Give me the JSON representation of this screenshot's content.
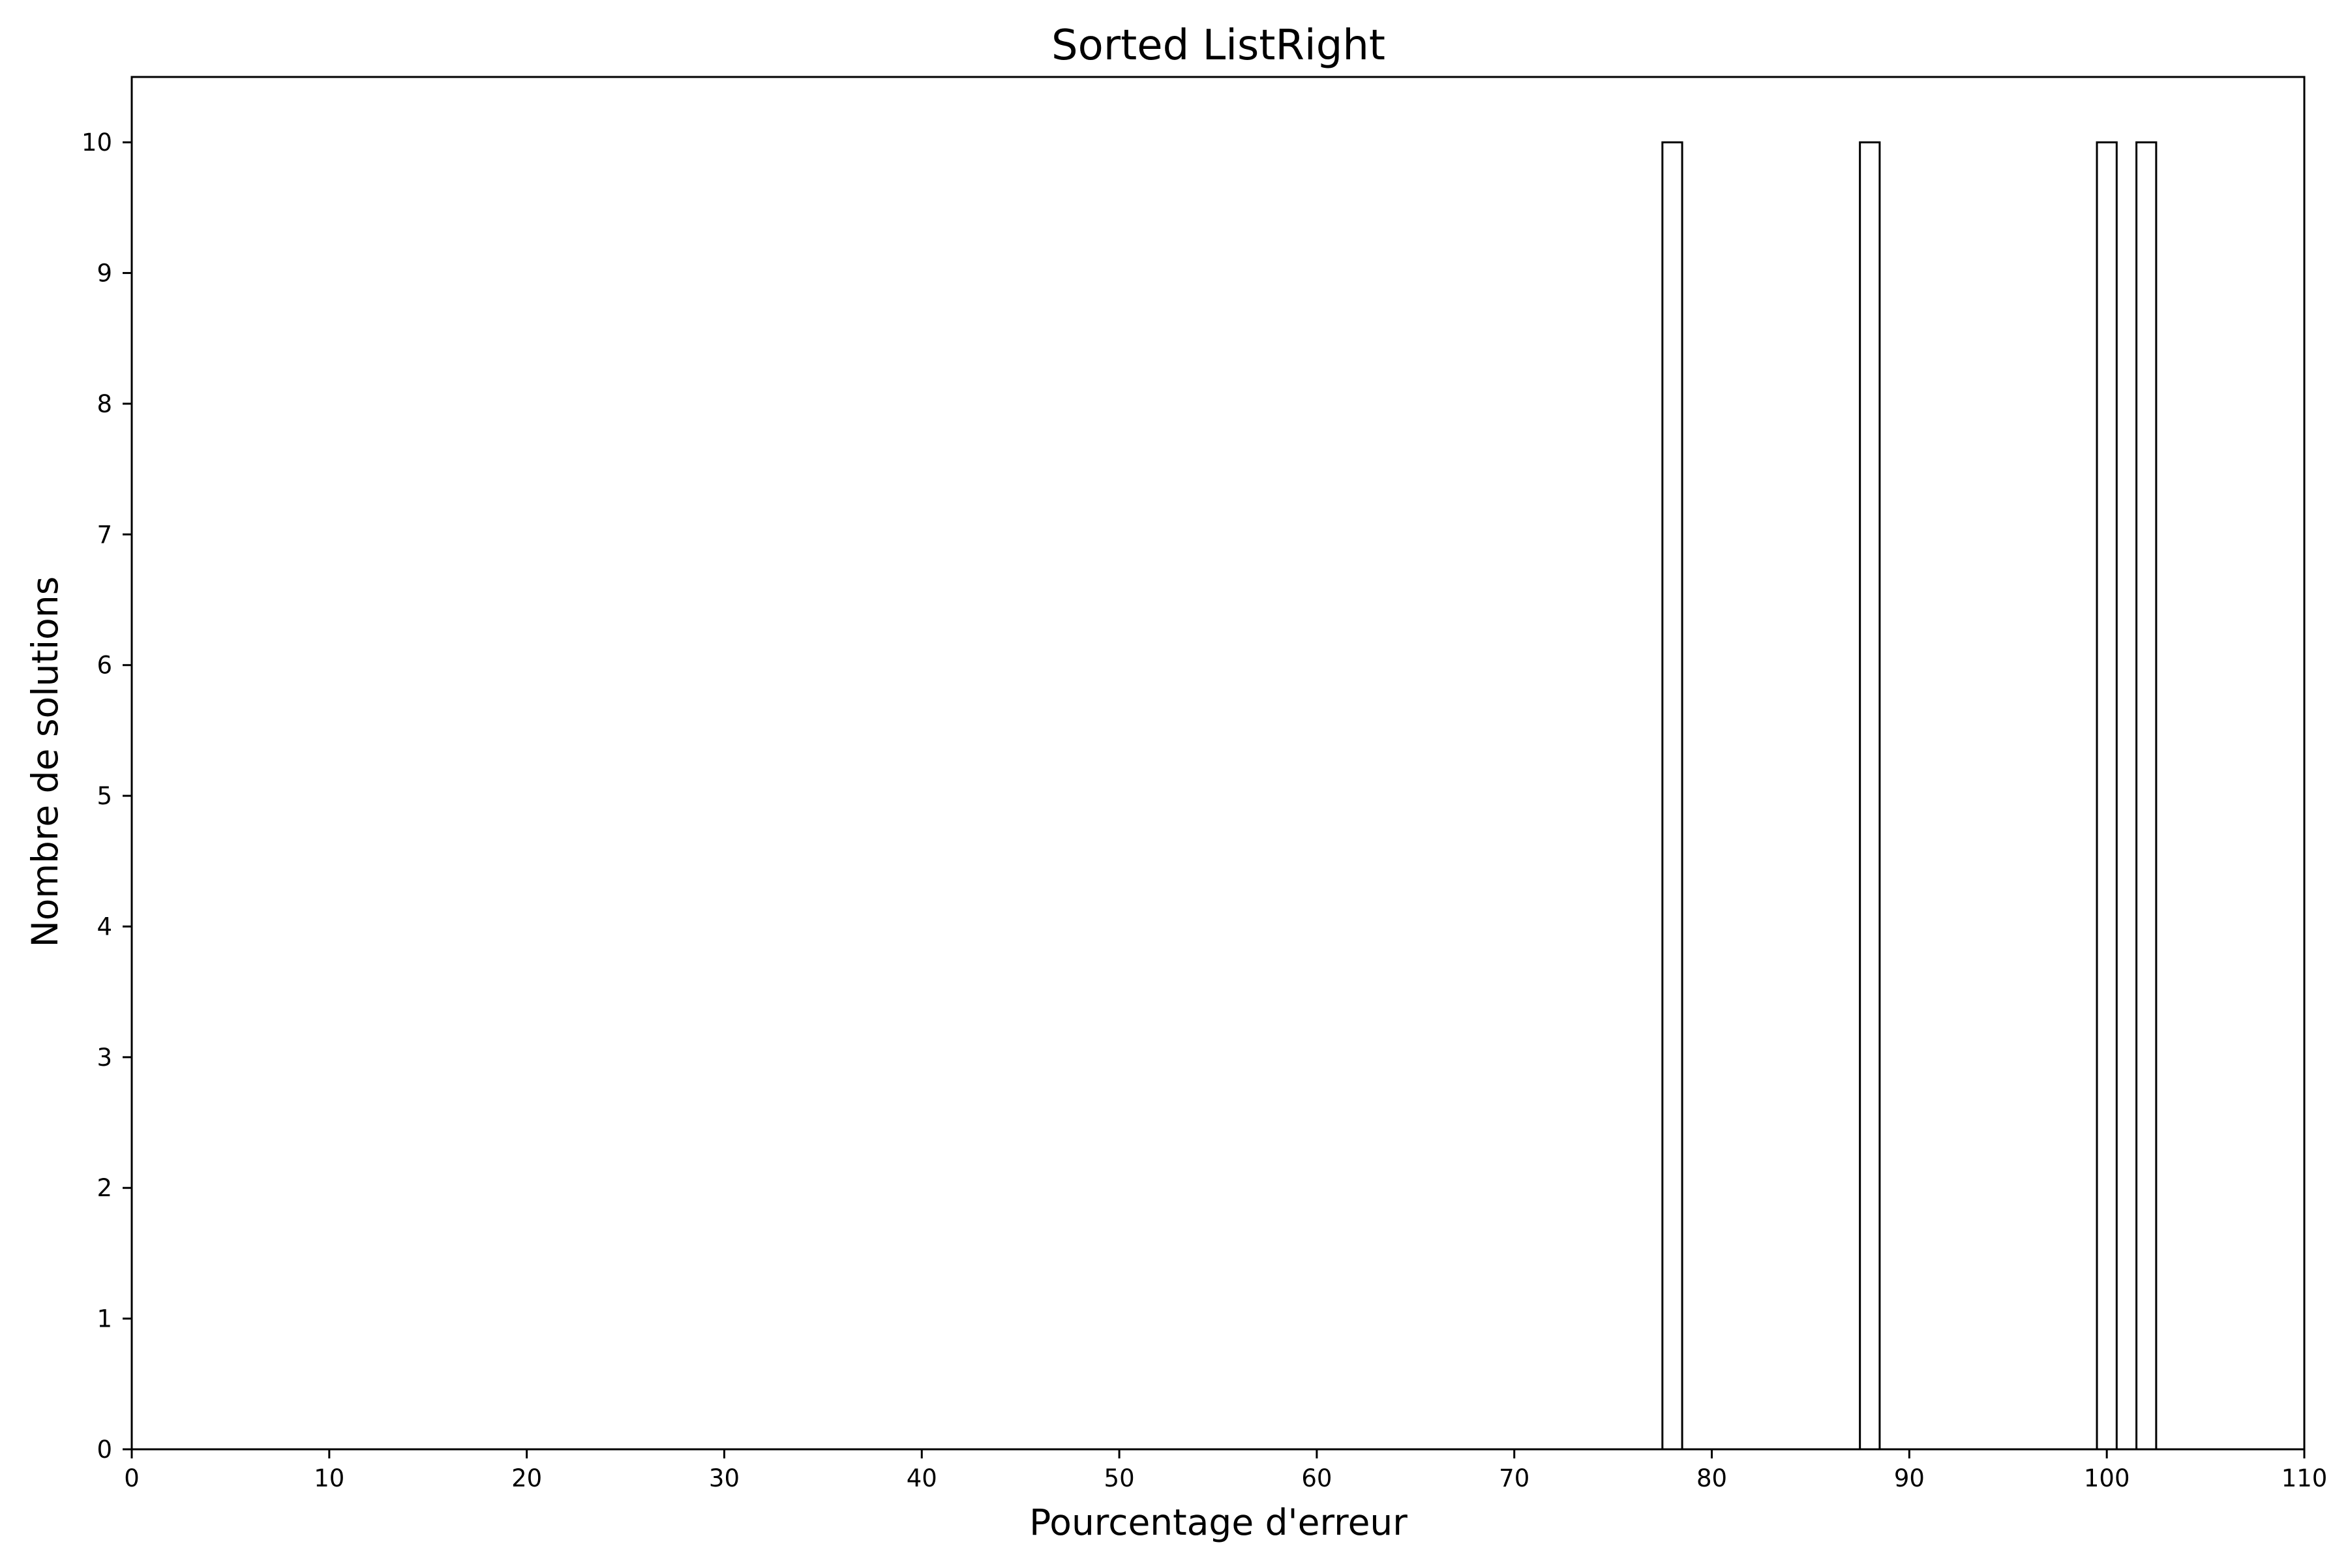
{
  "chart_data": {
    "type": "bar",
    "title": "Sorted ListRight",
    "xlabel": "Pourcentage d'erreur",
    "ylabel": "Nombre de solutions",
    "xlim": [
      0,
      110
    ],
    "ylim": [
      0,
      10.5
    ],
    "xticks": [
      "0",
      "10",
      "20",
      "30",
      "40",
      "50",
      "60",
      "70",
      "80",
      "90",
      "100",
      "110"
    ],
    "yticks": [
      "0",
      "1",
      "2",
      "3",
      "4",
      "5",
      "6",
      "7",
      "8",
      "9",
      "10"
    ],
    "bars": [
      {
        "x_start": 77.5,
        "x_end": 78.5,
        "value": 10
      },
      {
        "x_start": 87.5,
        "x_end": 88.5,
        "value": 10
      },
      {
        "x_start": 99.5,
        "x_end": 100.5,
        "value": 10
      },
      {
        "x_start": 101.5,
        "x_end": 102.5,
        "value": 10
      }
    ],
    "bar_fill": "#ffffff",
    "bar_edge": "#000000",
    "grid": false
  }
}
